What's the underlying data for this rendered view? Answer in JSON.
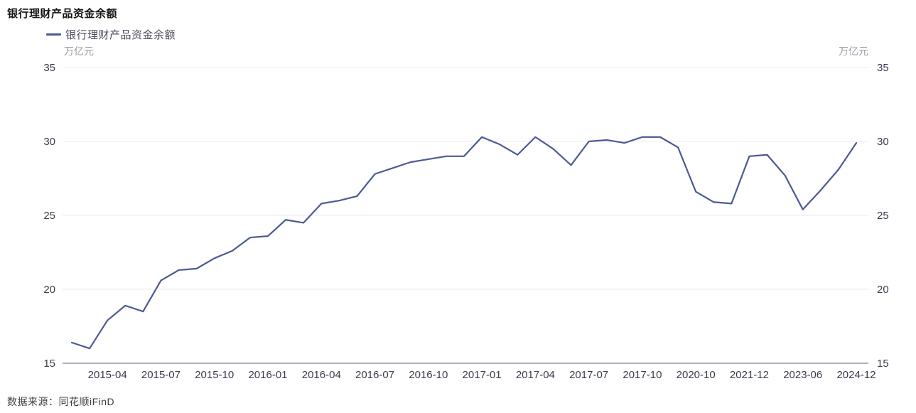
{
  "header": {
    "title": "银行理财产品资金余额"
  },
  "legend": {
    "label": "银行理财产品资金余额",
    "position": "top-left"
  },
  "footer": {
    "source": "数据来源：同花顺iFinD"
  },
  "colors": {
    "line": "#4c5a94",
    "grid": "#e8eaf4",
    "axis_line": "#5e6684",
    "tick_label": "#3b3b4d",
    "unit_label": "#9a9aa6",
    "title": "#141414",
    "legend_label": "#4c4c60",
    "source": "#3d3d3d"
  },
  "chart_data": {
    "type": "line",
    "title": "银行理财产品资金余额",
    "series_name": "银行理财产品资金余额",
    "unit": "万亿元",
    "ylabel_left": "万亿元",
    "ylabel_right": "万亿元",
    "ylim": [
      15,
      35
    ],
    "yticks": [
      15,
      20,
      25,
      30,
      35
    ],
    "grid": "horizontal",
    "legend_position": "top-left",
    "x_tick_labels": [
      "2015-04",
      "2015-07",
      "2015-10",
      "2016-01",
      "2016-04",
      "2016-07",
      "2016-10",
      "2017-01",
      "2017-04",
      "2017-07",
      "2017-10",
      "2020-10",
      "2021-12",
      "2023-06",
      "2024-12"
    ],
    "x_tick_indices": [
      2,
      5,
      8,
      11,
      14,
      17,
      20,
      23,
      26,
      29,
      32,
      35,
      38,
      41,
      44
    ],
    "values": [
      16.4,
      16.0,
      17.9,
      18.9,
      18.5,
      20.6,
      21.3,
      21.4,
      22.1,
      22.6,
      23.5,
      23.6,
      24.7,
      24.5,
      25.8,
      26.0,
      26.3,
      27.8,
      28.2,
      28.6,
      28.8,
      29.0,
      29.0,
      30.3,
      29.8,
      29.1,
      30.3,
      29.5,
      28.4,
      30.0,
      30.1,
      29.9,
      30.3,
      30.3,
      29.6,
      26.6,
      25.9,
      25.8,
      29.0,
      29.1,
      27.7,
      25.4,
      26.7,
      28.1,
      29.9
    ]
  }
}
